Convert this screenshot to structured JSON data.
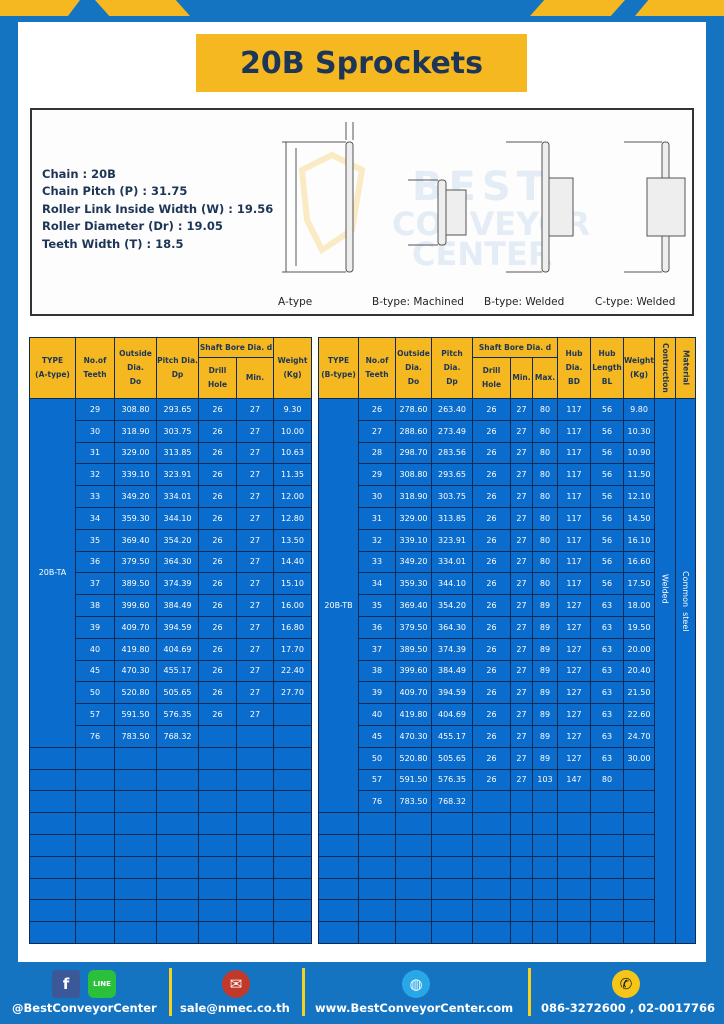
{
  "title": "20B Sprockets",
  "specs": [
    "Chain  : 20B",
    "Chain Pitch (P)  :  31.75",
    "Roller Link Inside Width (W)  :  19.56",
    "Roller Diameter (Dr)  : 19.05",
    "Teeth Width (T)  :  18.5"
  ],
  "diagram_labels": [
    "A-type",
    "B-type: Machined",
    "B-type: Welded",
    "C-type: Welded"
  ],
  "watermark": "BEST CONVEYOR CENTER",
  "colors": {
    "background": "#1574c2",
    "accent": "#f5b820",
    "cell": "#0a6ccc",
    "text": "#1d3557"
  },
  "table_a": {
    "headers": {
      "type": "TYPE",
      "type_sub": "(A-type)",
      "teeth": "No.of",
      "teeth_sub": "Teeth",
      "do": "Outside",
      "do_sub": "Dia.",
      "do_sub2": "Do",
      "dp": "Pitch Dia.",
      "dp_sub": "Dp",
      "bore": "Shaft Bore Dia. d",
      "drill": "Drill Hole",
      "min": "Min.",
      "weight": "Weight",
      "weight_sub": "(Kg)"
    },
    "type_value": "20B-TA",
    "rows": [
      [
        "29",
        "308.80",
        "293.65",
        "26",
        "27",
        "9.30"
      ],
      [
        "30",
        "318.90",
        "303.75",
        "26",
        "27",
        "10.00"
      ],
      [
        "31",
        "329.00",
        "313.85",
        "26",
        "27",
        "10.63"
      ],
      [
        "32",
        "339.10",
        "323.91",
        "26",
        "27",
        "11.35"
      ],
      [
        "33",
        "349.20",
        "334.01",
        "26",
        "27",
        "12.00"
      ],
      [
        "34",
        "359.30",
        "344.10",
        "26",
        "27",
        "12.80"
      ],
      [
        "35",
        "369.40",
        "354.20",
        "26",
        "27",
        "13.50"
      ],
      [
        "36",
        "379.50",
        "364.30",
        "26",
        "27",
        "14.40"
      ],
      [
        "37",
        "389.50",
        "374.39",
        "26",
        "27",
        "15.10"
      ],
      [
        "38",
        "399.60",
        "384.49",
        "26",
        "27",
        "16.00"
      ],
      [
        "39",
        "409.70",
        "394.59",
        "26",
        "27",
        "16.80"
      ],
      [
        "40",
        "419.80",
        "404.69",
        "26",
        "27",
        "17.70"
      ],
      [
        "45",
        "470.30",
        "455.17",
        "26",
        "27",
        "22.40"
      ],
      [
        "50",
        "520.80",
        "505.65",
        "26",
        "27",
        "27.70"
      ],
      [
        "57",
        "591.50",
        "576.35",
        "26",
        "27",
        ""
      ],
      [
        "76",
        "783.50",
        "768.32",
        "",
        "",
        ""
      ]
    ]
  },
  "table_b": {
    "headers": {
      "type": "TYPE",
      "type_sub": "(B-type)",
      "teeth": "No.of",
      "teeth_sub": "Teeth",
      "do": "Outside",
      "do_sub": "Dia.",
      "do_sub2": "Do",
      "dp": "Pitch Dia.",
      "dp_sub": "Dp",
      "bore": "Shaft Bore Dia. d",
      "drill": "Drill Hole",
      "min": "Min.",
      "max": "Max.",
      "bd": "Hub Dia.",
      "bd_sub": "BD",
      "bl": "Hub",
      "bl_sub": "Length",
      "bl_sub2": "BL",
      "weight": "Weight",
      "weight_sub": "(Kg)",
      "construction": "Contruction",
      "material": "Material"
    },
    "type_value": "20B-TB",
    "construction_value": "Welded",
    "material_value": "Common  steel",
    "rows": [
      [
        "26",
        "278.60",
        "263.40",
        "26",
        "27",
        "80",
        "117",
        "56",
        "9.80"
      ],
      [
        "27",
        "288.60",
        "273.49",
        "26",
        "27",
        "80",
        "117",
        "56",
        "10.30"
      ],
      [
        "28",
        "298.70",
        "283.56",
        "26",
        "27",
        "80",
        "117",
        "56",
        "10.90"
      ],
      [
        "29",
        "308.80",
        "293.65",
        "26",
        "27",
        "80",
        "117",
        "56",
        "11.50"
      ],
      [
        "30",
        "318.90",
        "303.75",
        "26",
        "27",
        "80",
        "117",
        "56",
        "12.10"
      ],
      [
        "31",
        "329.00",
        "313.85",
        "26",
        "27",
        "80",
        "117",
        "56",
        "14.50"
      ],
      [
        "32",
        "339.10",
        "323.91",
        "26",
        "27",
        "80",
        "117",
        "56",
        "16.10"
      ],
      [
        "33",
        "349.20",
        "334.01",
        "26",
        "27",
        "80",
        "117",
        "56",
        "16.60"
      ],
      [
        "34",
        "359.30",
        "344.10",
        "26",
        "27",
        "80",
        "117",
        "56",
        "17.50"
      ],
      [
        "35",
        "369.40",
        "354.20",
        "26",
        "27",
        "89",
        "127",
        "63",
        "18.00"
      ],
      [
        "36",
        "379.50",
        "364.30",
        "26",
        "27",
        "89",
        "127",
        "63",
        "19.50"
      ],
      [
        "37",
        "389.50",
        "374.39",
        "26",
        "27",
        "89",
        "127",
        "63",
        "20.00"
      ],
      [
        "38",
        "399.60",
        "384.49",
        "26",
        "27",
        "89",
        "127",
        "63",
        "20.40"
      ],
      [
        "39",
        "409.70",
        "394.59",
        "26",
        "27",
        "89",
        "127",
        "63",
        "21.50"
      ],
      [
        "40",
        "419.80",
        "404.69",
        "26",
        "27",
        "89",
        "127",
        "63",
        "22.60"
      ],
      [
        "45",
        "470.30",
        "455.17",
        "26",
        "27",
        "89",
        "127",
        "63",
        "24.70"
      ],
      [
        "50",
        "520.80",
        "505.65",
        "26",
        "27",
        "89",
        "127",
        "63",
        "30.00"
      ],
      [
        "57",
        "591.50",
        "576.35",
        "26",
        "27",
        "103",
        "147",
        "80",
        ""
      ],
      [
        "76",
        "783.50",
        "768.32",
        "",
        "",
        "",
        "",
        "",
        ""
      ]
    ]
  },
  "footer": {
    "social": "@BestConveyorCenter",
    "line_icon_text": "LINE",
    "email": "sale@nmec.co.th",
    "website": "www.BestConveyorCenter.com",
    "phone": "086-3272600 , 02-0017766"
  }
}
